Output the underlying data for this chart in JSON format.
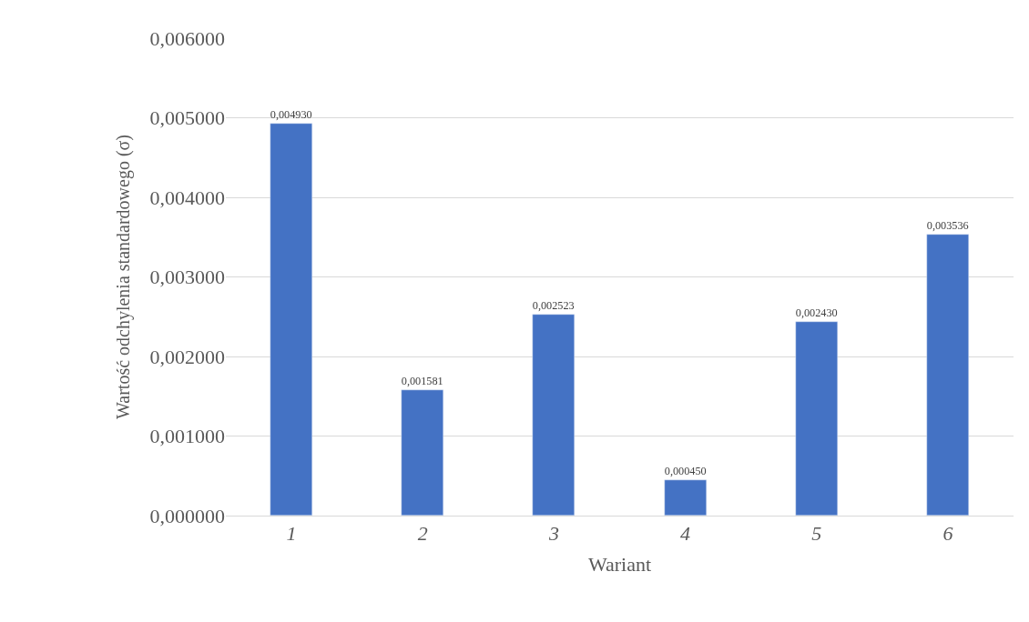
{
  "chart_data": {
    "type": "bar",
    "xlabel": "Wariant",
    "ylabel": "Wartość odchylenia standardowego (σ)",
    "categories": [
      "1",
      "2",
      "3",
      "4",
      "5",
      "6"
    ],
    "values": [
      0.00493,
      0.001581,
      0.002523,
      0.00045,
      0.00243,
      0.003536
    ],
    "value_labels": [
      "0,004930",
      "0,001581",
      "0,002523",
      "0,000450",
      "0,002430",
      "0,003536"
    ],
    "color": "#4472c4",
    "ylim": [
      0,
      0.006
    ],
    "yticks": [
      {
        "value": 0,
        "label": "0,000000"
      },
      {
        "value": 0.001,
        "label": "0,001000"
      },
      {
        "value": 0.002,
        "label": "0,002000"
      },
      {
        "value": 0.003,
        "label": "0,003000"
      },
      {
        "value": 0.004,
        "label": "0,004000"
      },
      {
        "value": 0.005,
        "label": "0,005000"
      },
      {
        "value": 0.006,
        "label": "0,006000"
      }
    ],
    "grid": "y",
    "legend": false
  }
}
